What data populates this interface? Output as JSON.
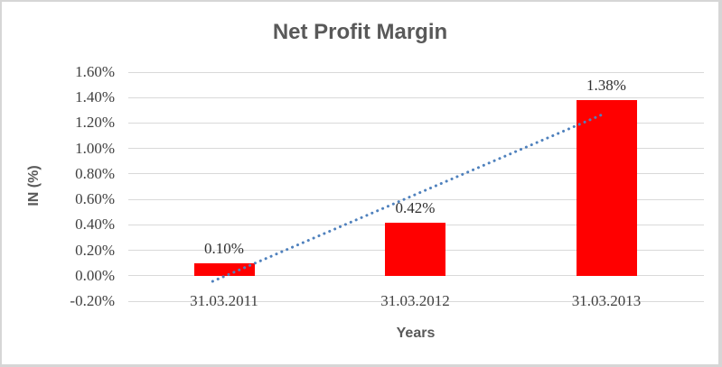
{
  "chart_data": {
    "type": "bar",
    "title": "Net Profit Margin",
    "xlabel": "Years",
    "ylabel": "IN (%)",
    "categories": [
      "31.03.2011",
      "31.03.2012",
      "31.03.2013"
    ],
    "values": [
      0.1,
      0.42,
      1.38
    ],
    "data_labels": [
      "0.10%",
      "0.42%",
      "1.38%"
    ],
    "y_ticks": [
      {
        "label": "1.60%",
        "value": 1.6
      },
      {
        "label": "1.40%",
        "value": 1.4
      },
      {
        "label": "1.20%",
        "value": 1.2
      },
      {
        "label": "1.00%",
        "value": 1.0
      },
      {
        "label": "0.80%",
        "value": 0.8
      },
      {
        "label": "0.60%",
        "value": 0.6
      },
      {
        "label": "0.40%",
        "value": 0.4
      },
      {
        "label": "0.20%",
        "value": 0.2
      },
      {
        "label": "0.00%",
        "value": 0.0
      },
      {
        "label": "-0.20%",
        "value": -0.2
      }
    ],
    "ylim": [
      -0.2,
      1.6
    ],
    "grid": true,
    "legend": "none",
    "bar_color": "#ff0000",
    "gridline_color": "#d9d9d9",
    "title_color": "#595959",
    "tick_color": "#404040",
    "trendline": {
      "style": "dotted",
      "color": "#4f81bd",
      "from": {
        "category_x": 0.94,
        "value": -0.044
      },
      "to": {
        "category_x": 2.99,
        "value": 1.274
      }
    }
  }
}
